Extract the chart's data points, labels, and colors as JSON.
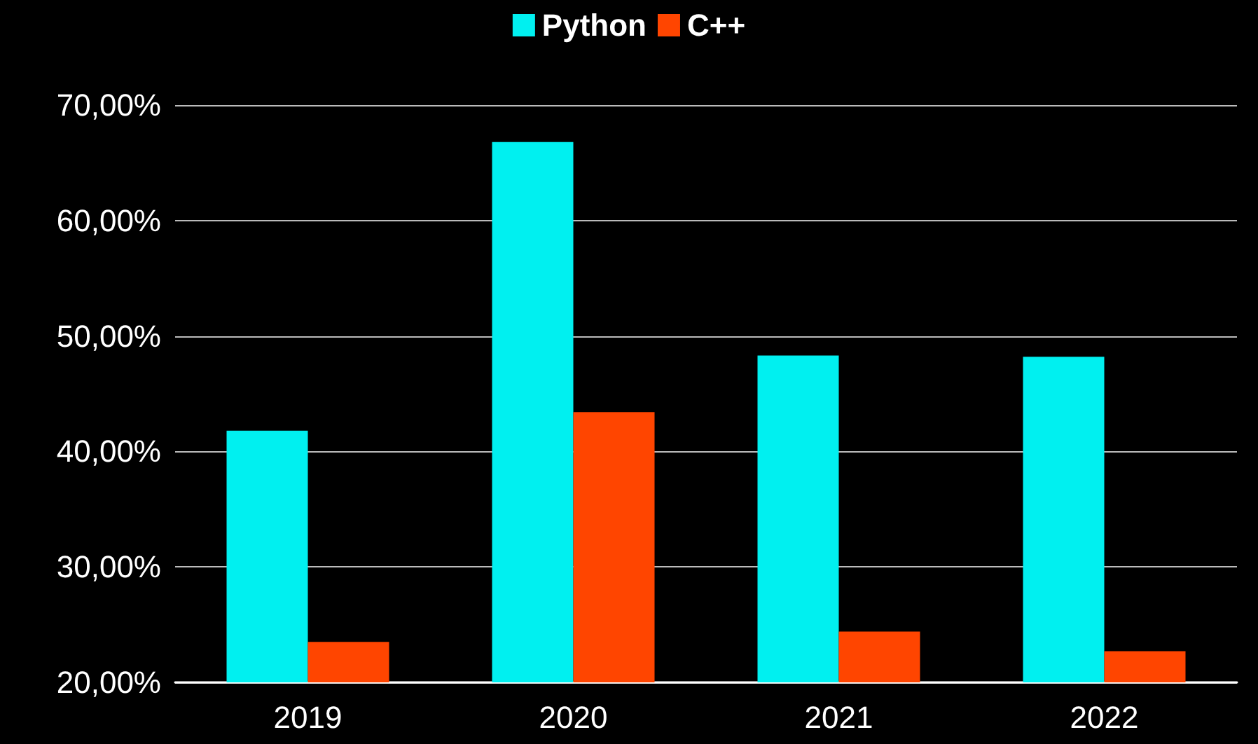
{
  "chart_data": {
    "type": "bar",
    "categories": [
      "2019",
      "2020",
      "2021",
      "2022"
    ],
    "series": [
      {
        "name": "Python",
        "color": "#00f0f0",
        "values": [
          41.8,
          66.8,
          48.3,
          48.2
        ]
      },
      {
        "name": "C++",
        "color": "#ff4500",
        "values": [
          23.5,
          43.4,
          24.4,
          22.7
        ]
      }
    ],
    "ylim": [
      20,
      70
    ],
    "yticks": [
      {
        "value": 20,
        "label": "20,00%"
      },
      {
        "value": 30,
        "label": "30,00%"
      },
      {
        "value": 40,
        "label": "40,00%"
      },
      {
        "value": 50,
        "label": "50,00%"
      },
      {
        "value": 60,
        "label": "60,00%"
      },
      {
        "value": 70,
        "label": "70,00%"
      }
    ],
    "grid": "y",
    "legend": "top"
  }
}
